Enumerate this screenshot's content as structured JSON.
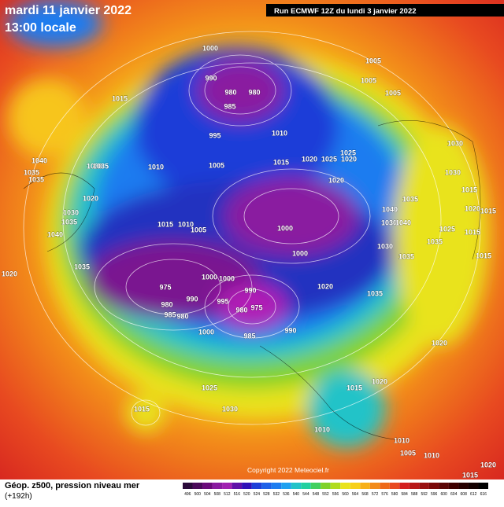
{
  "header": {
    "date": "mardi 11 janvier 2022",
    "time": "13:00 locale",
    "run": "Run ECMWF 12Z du lundi 3 janvier 2022"
  },
  "footer": {
    "title": "Géop. z500, pression niveau mer",
    "lead": "(+192h)",
    "copyright": "Copyright 2022 Meteociel.fr"
  },
  "scale_labels": [
    "496",
    "500",
    "504",
    "508",
    "512",
    "516",
    "520",
    "524",
    "528",
    "532",
    "536",
    "540",
    "544",
    "548",
    "552",
    "556",
    "560",
    "564",
    "568",
    "572",
    "576",
    "580",
    "584",
    "588",
    "592",
    "596",
    "600",
    "604",
    "608",
    "612",
    "616"
  ],
  "isobar_labels": [
    "1000",
    "990",
    "980",
    "980",
    "985",
    "1015",
    "995",
    "1010",
    "1005",
    "1005",
    "1005",
    "1010",
    "1005",
    "1025",
    "1020",
    "1020",
    "1015",
    "1025",
    "1030",
    "1030",
    "1020",
    "1015",
    "1020",
    "1015",
    "1025",
    "1015",
    "1040",
    "1035",
    "1035",
    "1030",
    "1035",
    "1020",
    "1030",
    "1035",
    "1040",
    "1020",
    "1035",
    "1015",
    "1010",
    "1005",
    "1000",
    "1000",
    "1040",
    "1035",
    "1030",
    "1040",
    "1035",
    "1030",
    "1035",
    "1015",
    "1020",
    "1035",
    "975",
    "980",
    "990",
    "985",
    "980",
    "1000",
    "1000",
    "995",
    "990",
    "975",
    "980",
    "985",
    "990",
    "1000",
    "1025",
    "1015",
    "1020",
    "1015",
    "1030",
    "1010",
    "1020",
    "1010",
    "1005",
    "1010",
    "1015",
    "1020"
  ]
}
